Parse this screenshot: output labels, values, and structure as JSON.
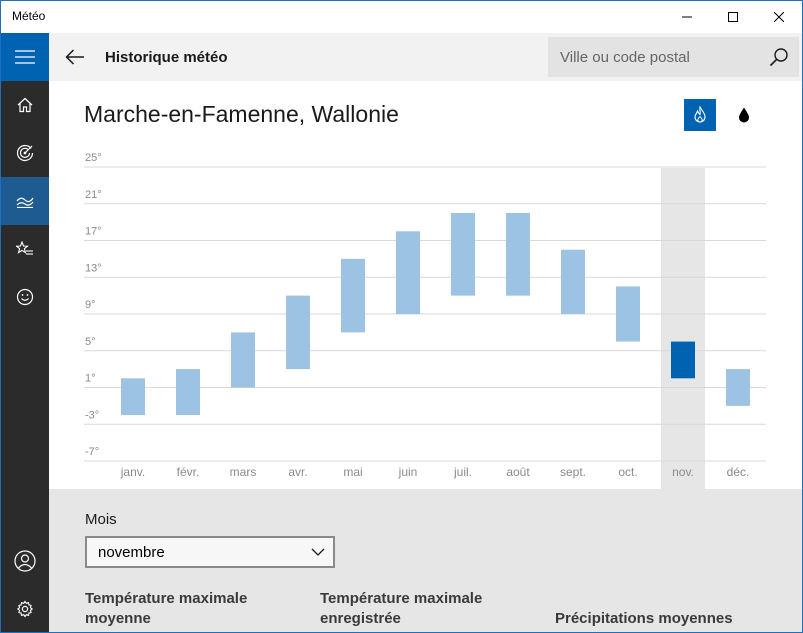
{
  "window": {
    "title": "Météo"
  },
  "header": {
    "title": "Historique météo"
  },
  "search": {
    "placeholder": "Ville ou code postal"
  },
  "location": "Marche-en-Famenne, Wallonie",
  "rail": {
    "items": [
      {
        "name": "menu",
        "icon": "hamburger-icon"
      },
      {
        "name": "home",
        "icon": "home-icon"
      },
      {
        "name": "maps",
        "icon": "radar-icon"
      },
      {
        "name": "historical",
        "icon": "chart-icon",
        "selected": true
      },
      {
        "name": "favorites",
        "icon": "star-list-icon"
      },
      {
        "name": "feedback",
        "icon": "smiley-icon"
      }
    ],
    "bottom": [
      {
        "name": "account",
        "icon": "user-icon"
      },
      {
        "name": "settings",
        "icon": "gear-icon"
      }
    ]
  },
  "colors": {
    "accent": "#0063b1",
    "bar": "#9cc3e3",
    "rail": "#2b2b2b",
    "selected_column": "#e6e6e6"
  },
  "chart_data": {
    "type": "bar",
    "categories": [
      "janv.",
      "févr.",
      "mars",
      "avr.",
      "mai",
      "juin",
      "juil.",
      "août",
      "sept.",
      "oct.",
      "nov.",
      "déc."
    ],
    "series": [
      {
        "low": [
          -2,
          -2,
          1,
          3,
          7,
          9,
          11,
          11,
          9,
          6,
          2,
          -1
        ],
        "high": [
          2,
          3,
          7,
          11,
          15,
          18,
          20,
          20,
          16,
          12,
          6,
          3
        ]
      }
    ],
    "yticks": [
      "25°",
      "21°",
      "17°",
      "13°",
      "9°",
      "5°",
      "1°",
      "-3°",
      "-7°"
    ],
    "ylim": [
      -7,
      25
    ],
    "selected_index": 10,
    "grid": true
  },
  "bottom": {
    "mois_label": "Mois",
    "mois_value": "novembre",
    "stats": [
      "Température maximale moyenne",
      "Température maximale enregistrée",
      "Précipitations moyennes"
    ]
  }
}
